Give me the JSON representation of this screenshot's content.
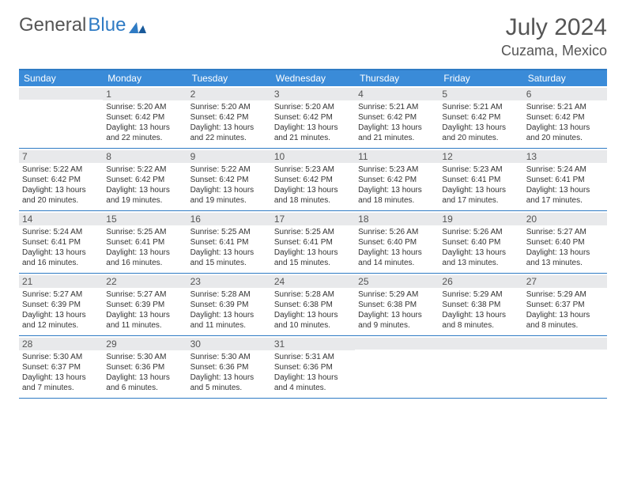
{
  "logo": {
    "part1": "General",
    "part2": "Blue"
  },
  "title": "July 2024",
  "location": "Cuzama, Mexico",
  "colors": {
    "header_bg": "#3a8bd8",
    "border": "#2f7bc4",
    "daybar_bg": "#e8e9eb",
    "text": "#333333",
    "title_text": "#555555"
  },
  "weekdays": [
    "Sunday",
    "Monday",
    "Tuesday",
    "Wednesday",
    "Thursday",
    "Friday",
    "Saturday"
  ],
  "weeks": [
    [
      {
        "n": "",
        "sr": "",
        "ss": "",
        "dl": ""
      },
      {
        "n": "1",
        "sr": "5:20 AM",
        "ss": "6:42 PM",
        "dl": "13 hours and 22 minutes."
      },
      {
        "n": "2",
        "sr": "5:20 AM",
        "ss": "6:42 PM",
        "dl": "13 hours and 22 minutes."
      },
      {
        "n": "3",
        "sr": "5:20 AM",
        "ss": "6:42 PM",
        "dl": "13 hours and 21 minutes."
      },
      {
        "n": "4",
        "sr": "5:21 AM",
        "ss": "6:42 PM",
        "dl": "13 hours and 21 minutes."
      },
      {
        "n": "5",
        "sr": "5:21 AM",
        "ss": "6:42 PM",
        "dl": "13 hours and 20 minutes."
      },
      {
        "n": "6",
        "sr": "5:21 AM",
        "ss": "6:42 PM",
        "dl": "13 hours and 20 minutes."
      }
    ],
    [
      {
        "n": "7",
        "sr": "5:22 AM",
        "ss": "6:42 PM",
        "dl": "13 hours and 20 minutes."
      },
      {
        "n": "8",
        "sr": "5:22 AM",
        "ss": "6:42 PM",
        "dl": "13 hours and 19 minutes."
      },
      {
        "n": "9",
        "sr": "5:22 AM",
        "ss": "6:42 PM",
        "dl": "13 hours and 19 minutes."
      },
      {
        "n": "10",
        "sr": "5:23 AM",
        "ss": "6:42 PM",
        "dl": "13 hours and 18 minutes."
      },
      {
        "n": "11",
        "sr": "5:23 AM",
        "ss": "6:42 PM",
        "dl": "13 hours and 18 minutes."
      },
      {
        "n": "12",
        "sr": "5:23 AM",
        "ss": "6:41 PM",
        "dl": "13 hours and 17 minutes."
      },
      {
        "n": "13",
        "sr": "5:24 AM",
        "ss": "6:41 PM",
        "dl": "13 hours and 17 minutes."
      }
    ],
    [
      {
        "n": "14",
        "sr": "5:24 AM",
        "ss": "6:41 PM",
        "dl": "13 hours and 16 minutes."
      },
      {
        "n": "15",
        "sr": "5:25 AM",
        "ss": "6:41 PM",
        "dl": "13 hours and 16 minutes."
      },
      {
        "n": "16",
        "sr": "5:25 AM",
        "ss": "6:41 PM",
        "dl": "13 hours and 15 minutes."
      },
      {
        "n": "17",
        "sr": "5:25 AM",
        "ss": "6:41 PM",
        "dl": "13 hours and 15 minutes."
      },
      {
        "n": "18",
        "sr": "5:26 AM",
        "ss": "6:40 PM",
        "dl": "13 hours and 14 minutes."
      },
      {
        "n": "19",
        "sr": "5:26 AM",
        "ss": "6:40 PM",
        "dl": "13 hours and 13 minutes."
      },
      {
        "n": "20",
        "sr": "5:27 AM",
        "ss": "6:40 PM",
        "dl": "13 hours and 13 minutes."
      }
    ],
    [
      {
        "n": "21",
        "sr": "5:27 AM",
        "ss": "6:39 PM",
        "dl": "13 hours and 12 minutes."
      },
      {
        "n": "22",
        "sr": "5:27 AM",
        "ss": "6:39 PM",
        "dl": "13 hours and 11 minutes."
      },
      {
        "n": "23",
        "sr": "5:28 AM",
        "ss": "6:39 PM",
        "dl": "13 hours and 11 minutes."
      },
      {
        "n": "24",
        "sr": "5:28 AM",
        "ss": "6:38 PM",
        "dl": "13 hours and 10 minutes."
      },
      {
        "n": "25",
        "sr": "5:29 AM",
        "ss": "6:38 PM",
        "dl": "13 hours and 9 minutes."
      },
      {
        "n": "26",
        "sr": "5:29 AM",
        "ss": "6:38 PM",
        "dl": "13 hours and 8 minutes."
      },
      {
        "n": "27",
        "sr": "5:29 AM",
        "ss": "6:37 PM",
        "dl": "13 hours and 8 minutes."
      }
    ],
    [
      {
        "n": "28",
        "sr": "5:30 AM",
        "ss": "6:37 PM",
        "dl": "13 hours and 7 minutes."
      },
      {
        "n": "29",
        "sr": "5:30 AM",
        "ss": "6:36 PM",
        "dl": "13 hours and 6 minutes."
      },
      {
        "n": "30",
        "sr": "5:30 AM",
        "ss": "6:36 PM",
        "dl": "13 hours and 5 minutes."
      },
      {
        "n": "31",
        "sr": "5:31 AM",
        "ss": "6:36 PM",
        "dl": "13 hours and 4 minutes."
      },
      {
        "n": "",
        "sr": "",
        "ss": "",
        "dl": ""
      },
      {
        "n": "",
        "sr": "",
        "ss": "",
        "dl": ""
      },
      {
        "n": "",
        "sr": "",
        "ss": "",
        "dl": ""
      }
    ]
  ],
  "labels": {
    "sunrise": "Sunrise:",
    "sunset": "Sunset:",
    "daylight": "Daylight:"
  }
}
